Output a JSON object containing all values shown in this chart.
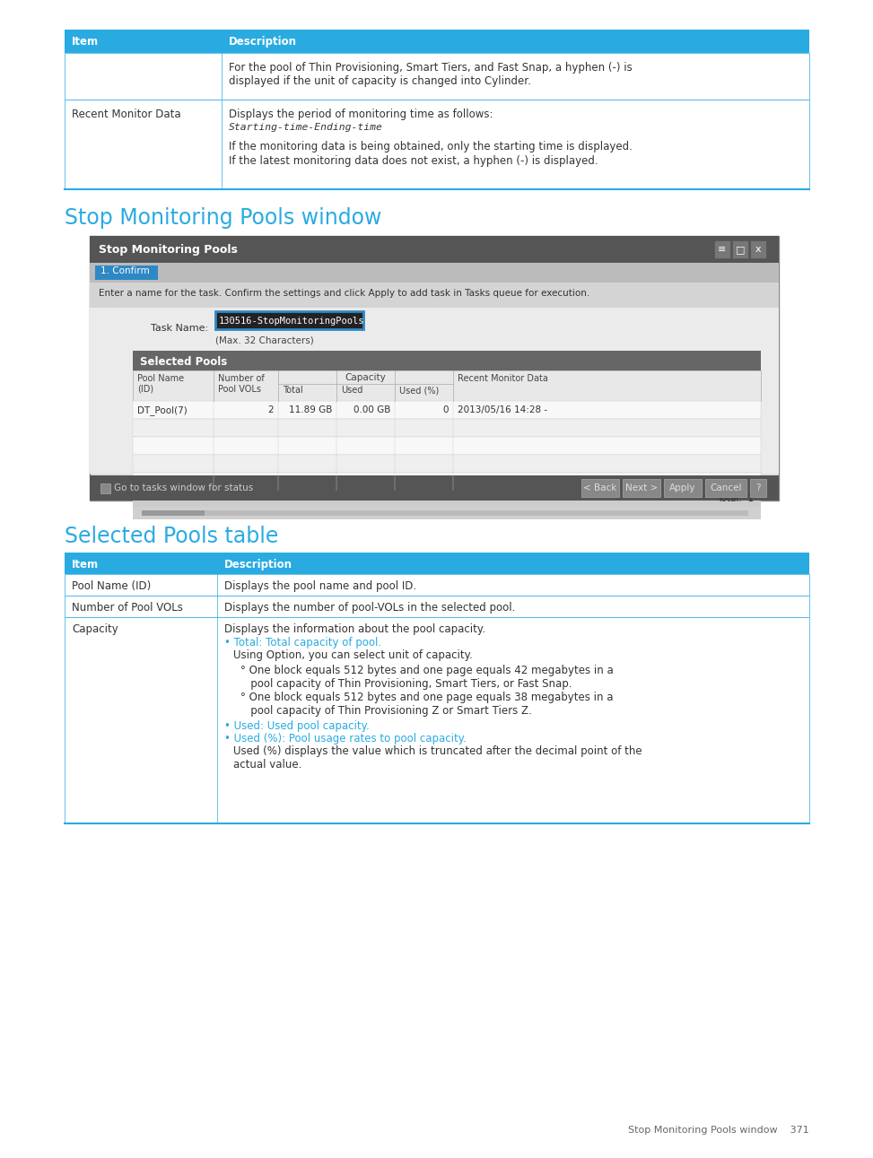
{
  "page_bg": "#ffffff",
  "cyan_color": "#29abe2",
  "table_header_bg": "#29abe2",
  "table_border": "#29abe2",
  "text_color": "#333333",
  "top_table_rows": [
    [
      "",
      "For the pool of Thin Provisioning, Smart Tiers, and Fast Snap, a hyphen (-) is\ndisplayed if the unit of capacity is changed into Cylinder."
    ],
    [
      "Recent Monitor Data",
      "Displays the period of monitoring time as follows:"
    ]
  ],
  "section1_title": "Stop Monitoring Pools window",
  "section2_title": "Selected Pools table",
  "window_title": "Stop Monitoring Pools",
  "confirm_tab": "1. Confirm",
  "task_label": "Task Name:",
  "task_value": "130516-StopMonitoringPools",
  "task_hint": "(Max. 32 Characters)",
  "instruction": "Enter a name for the task. Confirm the settings and click Apply to add task in Tasks queue for execution.",
  "selected_pools_header": "Selected Pools",
  "pool_data": [
    "DT_Pool(7)",
    "2",
    "11.89 GB",
    "0.00 GB",
    "0",
    "2013/05/16 14:28 -"
  ],
  "total_text": "Total:  1",
  "footer_text": "Stop Monitoring Pools window    371"
}
